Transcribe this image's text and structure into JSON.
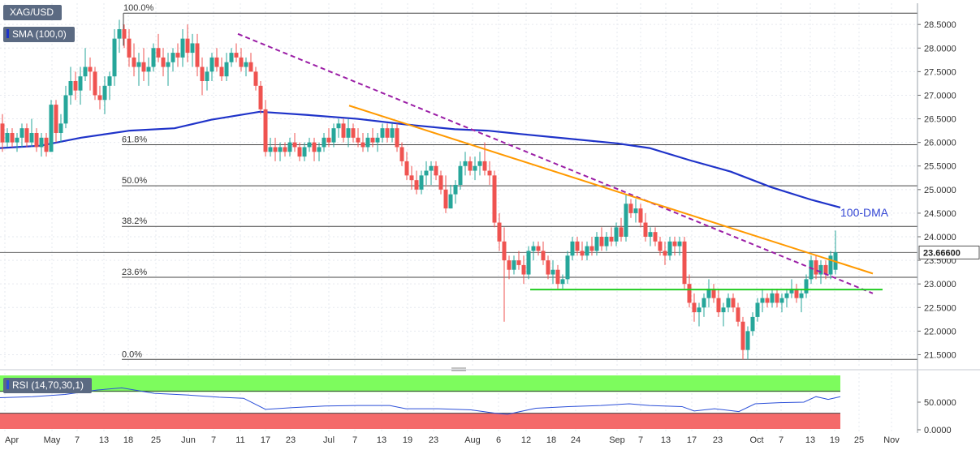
{
  "header": {
    "symbol": "XAG/USD",
    "indicator": "SMA (100,0)",
    "rsi_label": "RSI (14,70,30,1)"
  },
  "annotations": {
    "dma_label": "100-DMA"
  },
  "colors": {
    "up": "#26a69a",
    "down": "#ef5350",
    "sma": "#1f33c9",
    "trend_dashed": "#9b1ea6",
    "trend_orange": "#ff9900",
    "support": "#22cc22",
    "rsi_line": "#2b4fd8",
    "rsi_over": "#7dfc5d",
    "rsi_under": "#f46a6a"
  },
  "chart_data": {
    "type": "candlestick",
    "title": "",
    "y_ticks": [
      "28.5000",
      "28.0000",
      "27.5000",
      "27.0000",
      "26.5000",
      "26.0000",
      "25.5000",
      "25.0000",
      "24.5000",
      "24.0000",
      "23.5000",
      "23.0000",
      "22.5000",
      "22.0000",
      "21.5000"
    ],
    "ylim": [
      21.25,
      28.95
    ],
    "x_ticks": [
      "Apr",
      "May",
      "7",
      "13",
      "18",
      "25",
      "Jun",
      "7",
      "11",
      "17",
      "23",
      "Jul",
      "7",
      "13",
      "19",
      "23",
      "Aug",
      "6",
      "12",
      "18",
      "24",
      "Sep",
      "7",
      "13",
      "17",
      "23",
      "Oct",
      "7",
      "13",
      "19",
      "25",
      "Nov"
    ],
    "last_price": "23.66600",
    "last_value": 23.666,
    "fibonacci": [
      {
        "label": "100.0%",
        "value": 28.74
      },
      {
        "label": "61.8%",
        "value": 25.95
      },
      {
        "label": "50.0%",
        "value": 25.08
      },
      {
        "label": "38.2%",
        "value": 24.22
      },
      {
        "label": "23.6%",
        "value": 23.14
      },
      {
        "label": "0.0%",
        "value": 21.4
      }
    ],
    "sma_100": [
      [
        0,
        25.88
      ],
      [
        50,
        25.93
      ],
      [
        100,
        26.1
      ],
      [
        160,
        26.25
      ],
      [
        215,
        26.3
      ],
      [
        260,
        26.48
      ],
      [
        320,
        26.65
      ],
      [
        380,
        26.58
      ],
      [
        440,
        26.5
      ],
      [
        500,
        26.38
      ],
      [
        560,
        26.28
      ],
      [
        600,
        26.25
      ],
      [
        640,
        26.18
      ],
      [
        700,
        26.08
      ],
      [
        760,
        25.98
      ],
      [
        800,
        25.88
      ],
      [
        850,
        25.62
      ],
      [
        900,
        25.38
      ],
      [
        950,
        25.05
      ],
      [
        1000,
        24.78
      ],
      [
        1035,
        24.62
      ]
    ],
    "trendlines": [
      {
        "name": "dashed",
        "from": [
          293,
          28.3
        ],
        "to": [
          1075,
          22.8
        ]
      },
      {
        "name": "orange",
        "from": [
          430,
          26.78
        ],
        "to": [
          1075,
          23.22
        ]
      },
      {
        "name": "support",
        "from": [
          653,
          22.88
        ],
        "to": [
          1087,
          22.88
        ]
      }
    ],
    "candles": [
      [
        3,
        26.4,
        26.6,
        25.8,
        26.0
      ],
      [
        9,
        26.0,
        26.3,
        25.9,
        26.2
      ],
      [
        15,
        26.2,
        26.3,
        25.9,
        26.0
      ],
      [
        21,
        26.0,
        26.2,
        25.8,
        26.1
      ],
      [
        27,
        26.1,
        26.4,
        25.9,
        26.3
      ],
      [
        33,
        26.3,
        26.4,
        25.9,
        26.0
      ],
      [
        39,
        26.0,
        26.5,
        25.9,
        26.2
      ],
      [
        45,
        26.2,
        26.3,
        25.8,
        25.9
      ],
      [
        51,
        25.9,
        26.2,
        25.7,
        26.1
      ],
      [
        57,
        26.1,
        26.2,
        25.7,
        25.8
      ],
      [
        63,
        25.8,
        26.9,
        25.8,
        26.8
      ],
      [
        69,
        26.8,
        26.9,
        26.0,
        26.2
      ],
      [
        75,
        26.2,
        26.6,
        26.0,
        26.4
      ],
      [
        81,
        26.4,
        27.2,
        26.3,
        27.0
      ],
      [
        87,
        27.0,
        27.6,
        26.8,
        27.3
      ],
      [
        93,
        27.3,
        27.5,
        26.9,
        27.1
      ],
      [
        99,
        27.1,
        27.6,
        26.8,
        27.4
      ],
      [
        105,
        27.4,
        28.0,
        27.3,
        27.6
      ],
      [
        111,
        27.6,
        27.8,
        27.1,
        27.5
      ],
      [
        117,
        27.5,
        27.6,
        26.9,
        27.0
      ],
      [
        123,
        27.0,
        27.2,
        26.7,
        26.9
      ],
      [
        129,
        26.9,
        27.4,
        26.6,
        27.2
      ],
      [
        135,
        27.2,
        27.5,
        26.9,
        27.4
      ],
      [
        141,
        27.4,
        28.4,
        27.2,
        28.2
      ],
      [
        147,
        28.2,
        28.6,
        27.9,
        28.4
      ],
      [
        153,
        28.4,
        28.5,
        28.0,
        28.2
      ],
      [
        159,
        28.2,
        28.4,
        27.6,
        27.8
      ],
      [
        165,
        27.8,
        28.1,
        27.4,
        27.6
      ],
      [
        171,
        27.6,
        27.9,
        27.2,
        27.7
      ],
      [
        177,
        27.7,
        28.0,
        27.3,
        27.5
      ],
      [
        183,
        27.5,
        27.8,
        27.2,
        27.6
      ],
      [
        189,
        27.6,
        28.1,
        27.5,
        28.0
      ],
      [
        195,
        28.0,
        28.3,
        27.7,
        27.8
      ],
      [
        201,
        27.8,
        28.0,
        27.4,
        27.6
      ],
      [
        207,
        27.6,
        27.9,
        27.2,
        27.7
      ],
      [
        213,
        27.7,
        28.0,
        27.5,
        27.9
      ],
      [
        219,
        27.9,
        28.1,
        27.6,
        27.8
      ],
      [
        225,
        27.8,
        28.4,
        27.6,
        28.2
      ],
      [
        231,
        28.2,
        28.5,
        27.7,
        27.9
      ],
      [
        237,
        27.9,
        28.3,
        27.6,
        28.1
      ],
      [
        243,
        28.1,
        28.3,
        27.4,
        27.6
      ],
      [
        249,
        27.6,
        27.8,
        27.0,
        27.3
      ],
      [
        255,
        27.3,
        27.6,
        27.1,
        27.5
      ],
      [
        261,
        27.5,
        27.9,
        27.3,
        27.8
      ],
      [
        267,
        27.8,
        28.0,
        27.5,
        27.6
      ],
      [
        273,
        27.6,
        27.8,
        27.3,
        27.4
      ],
      [
        279,
        27.4,
        27.9,
        27.3,
        27.7
      ],
      [
        285,
        27.7,
        28.0,
        27.6,
        27.9
      ],
      [
        291,
        27.9,
        28.1,
        27.7,
        27.8
      ],
      [
        297,
        27.8,
        28.0,
        27.5,
        27.6
      ],
      [
        303,
        27.6,
        27.8,
        27.4,
        27.7
      ],
      [
        309,
        27.7,
        27.9,
        27.5,
        27.5
      ],
      [
        315,
        27.5,
        27.6,
        27.1,
        27.2
      ],
      [
        321,
        27.2,
        27.3,
        26.6,
        26.7
      ],
      [
        327,
        26.7,
        26.9,
        25.7,
        25.8
      ],
      [
        333,
        25.8,
        26.1,
        25.7,
        25.9
      ],
      [
        339,
        25.9,
        26.1,
        25.6,
        25.8
      ],
      [
        345,
        25.8,
        26.0,
        25.6,
        25.9
      ],
      [
        351,
        25.9,
        26.0,
        25.7,
        25.8
      ],
      [
        357,
        25.8,
        26.1,
        25.7,
        26.0
      ],
      [
        363,
        26.0,
        26.2,
        25.8,
        25.9
      ],
      [
        369,
        25.9,
        26.0,
        25.6,
        25.7
      ],
      [
        375,
        25.7,
        26.0,
        25.6,
        25.9
      ],
      [
        381,
        25.9,
        26.1,
        25.8,
        26.0
      ],
      [
        387,
        26.0,
        26.1,
        25.6,
        25.8
      ],
      [
        393,
        25.8,
        26.0,
        25.6,
        25.9
      ],
      [
        399,
        25.9,
        26.2,
        25.8,
        26.1
      ],
      [
        405,
        26.1,
        26.3,
        25.9,
        26.0
      ],
      [
        411,
        26.0,
        26.4,
        25.9,
        26.3
      ],
      [
        417,
        26.3,
        26.5,
        26.1,
        26.4
      ],
      [
        423,
        26.4,
        26.5,
        26.0,
        26.1
      ],
      [
        429,
        26.1,
        26.5,
        25.9,
        26.3
      ],
      [
        435,
        26.3,
        26.4,
        26.0,
        26.1
      ],
      [
        441,
        26.1,
        26.3,
        25.9,
        26.0
      ],
      [
        447,
        26.0,
        26.2,
        25.8,
        25.9
      ],
      [
        453,
        25.9,
        26.2,
        25.8,
        26.1
      ],
      [
        459,
        26.1,
        26.3,
        25.9,
        26.0
      ],
      [
        465,
        26.0,
        26.2,
        25.8,
        26.1
      ],
      [
        471,
        26.1,
        26.4,
        26.0,
        26.3
      ],
      [
        477,
        26.3,
        26.4,
        26.0,
        26.1
      ],
      [
        483,
        26.1,
        26.4,
        26.0,
        26.3
      ],
      [
        489,
        26.3,
        26.4,
        25.8,
        25.9
      ],
      [
        495,
        25.9,
        26.0,
        25.5,
        25.6
      ],
      [
        501,
        25.6,
        25.8,
        25.2,
        25.3
      ],
      [
        507,
        25.3,
        25.5,
        25.0,
        25.2
      ],
      [
        513,
        25.2,
        25.4,
        24.9,
        25.0
      ],
      [
        519,
        25.0,
        25.4,
        24.9,
        25.3
      ],
      [
        525,
        25.3,
        25.6,
        25.1,
        25.4
      ],
      [
        531,
        25.4,
        25.6,
        25.1,
        25.5
      ],
      [
        537,
        25.5,
        25.6,
        25.2,
        25.3
      ],
      [
        543,
        25.3,
        25.4,
        24.9,
        25.0
      ],
      [
        549,
        25.0,
        25.3,
        24.5,
        24.6
      ],
      [
        555,
        24.6,
        25.1,
        24.6,
        24.9
      ],
      [
        561,
        24.9,
        25.2,
        24.7,
        25.1
      ],
      [
        567,
        25.1,
        25.6,
        25.0,
        25.5
      ],
      [
        573,
        25.5,
        25.8,
        25.3,
        25.6
      ],
      [
        579,
        25.6,
        25.7,
        25.3,
        25.4
      ],
      [
        585,
        25.4,
        25.7,
        25.2,
        25.5
      ],
      [
        591,
        25.5,
        25.8,
        25.3,
        25.6
      ],
      [
        597,
        25.6,
        26.0,
        25.3,
        25.4
      ],
      [
        603,
        25.4,
        25.6,
        25.1,
        25.3
      ],
      [
        609,
        25.3,
        25.4,
        24.2,
        24.3
      ],
      [
        615,
        24.3,
        24.5,
        23.7,
        23.9
      ],
      [
        621,
        23.9,
        24.2,
        22.2,
        23.5
      ],
      [
        627,
        23.5,
        23.6,
        23.1,
        23.3
      ],
      [
        633,
        23.3,
        23.6,
        23.2,
        23.5
      ],
      [
        639,
        23.5,
        23.7,
        23.3,
        23.4
      ],
      [
        645,
        23.4,
        23.6,
        23.0,
        23.2
      ],
      [
        651,
        23.2,
        23.8,
        23.1,
        23.7
      ],
      [
        657,
        23.7,
        23.9,
        23.5,
        23.8
      ],
      [
        663,
        23.8,
        23.9,
        23.6,
        23.7
      ],
      [
        669,
        23.7,
        23.9,
        23.4,
        23.5
      ],
      [
        675,
        23.5,
        23.6,
        23.1,
        23.2
      ],
      [
        681,
        23.2,
        23.5,
        23.0,
        23.3
      ],
      [
        687,
        23.3,
        23.4,
        22.9,
        23.0
      ],
      [
        693,
        23.0,
        23.2,
        22.9,
        23.1
      ],
      [
        699,
        23.1,
        23.7,
        23.0,
        23.6
      ],
      [
        705,
        23.6,
        24.0,
        23.5,
        23.9
      ],
      [
        711,
        23.9,
        24.0,
        23.6,
        23.7
      ],
      [
        717,
        23.7,
        23.9,
        23.5,
        23.6
      ],
      [
        723,
        23.6,
        23.9,
        23.5,
        23.8
      ],
      [
        729,
        23.8,
        24.0,
        23.6,
        23.7
      ],
      [
        735,
        23.7,
        24.1,
        23.6,
        24.0
      ],
      [
        741,
        24.0,
        24.2,
        23.7,
        23.8
      ],
      [
        747,
        23.8,
        24.1,
        23.7,
        24.0
      ],
      [
        753,
        24.0,
        24.2,
        23.8,
        23.9
      ],
      [
        759,
        23.9,
        24.3,
        23.8,
        24.2
      ],
      [
        765,
        24.2,
        24.4,
        23.9,
        24.0
      ],
      [
        771,
        24.0,
        24.9,
        23.9,
        24.7
      ],
      [
        777,
        24.7,
        24.8,
        24.4,
        24.5
      ],
      [
        783,
        24.5,
        24.8,
        24.3,
        24.6
      ],
      [
        789,
        24.6,
        24.7,
        24.2,
        24.3
      ],
      [
        795,
        24.3,
        24.5,
        23.9,
        24.0
      ],
      [
        801,
        24.0,
        24.2,
        23.8,
        24.1
      ],
      [
        807,
        24.1,
        24.2,
        23.8,
        23.9
      ],
      [
        813,
        23.9,
        24.0,
        23.6,
        23.7
      ],
      [
        819,
        23.7,
        23.9,
        23.4,
        23.6
      ],
      [
        825,
        23.6,
        24.0,
        23.5,
        23.9
      ],
      [
        831,
        23.9,
        24.0,
        23.6,
        23.8
      ],
      [
        837,
        23.8,
        24.0,
        23.6,
        23.9
      ],
      [
        843,
        23.9,
        24.0,
        22.9,
        23.0
      ],
      [
        849,
        23.0,
        23.2,
        22.5,
        22.6
      ],
      [
        855,
        22.6,
        22.8,
        22.2,
        22.4
      ],
      [
        861,
        22.4,
        22.6,
        22.1,
        22.5
      ],
      [
        867,
        22.5,
        22.8,
        22.3,
        22.7
      ],
      [
        873,
        22.7,
        23.1,
        22.5,
        22.9
      ],
      [
        879,
        22.9,
        23.0,
        22.6,
        22.7
      ],
      [
        885,
        22.7,
        22.9,
        22.3,
        22.4
      ],
      [
        891,
        22.4,
        22.6,
        22.1,
        22.5
      ],
      [
        897,
        22.5,
        22.8,
        22.4,
        22.7
      ],
      [
        903,
        22.7,
        22.8,
        22.4,
        22.5
      ],
      [
        909,
        22.5,
        22.6,
        22.1,
        22.2
      ],
      [
        915,
        22.2,
        22.3,
        21.4,
        21.6
      ],
      [
        921,
        21.6,
        22.1,
        21.4,
        22.0
      ],
      [
        927,
        22.0,
        22.4,
        21.9,
        22.3
      ],
      [
        933,
        22.3,
        22.7,
        22.2,
        22.6
      ],
      [
        939,
        22.6,
        22.9,
        22.4,
        22.7
      ],
      [
        945,
        22.7,
        22.8,
        22.5,
        22.6
      ],
      [
        951,
        22.6,
        22.9,
        22.5,
        22.8
      ],
      [
        957,
        22.8,
        22.9,
        22.5,
        22.6
      ],
      [
        963,
        22.6,
        22.8,
        22.4,
        22.7
      ],
      [
        969,
        22.7,
        22.9,
        22.5,
        22.8
      ],
      [
        975,
        22.8,
        23.1,
        22.7,
        22.9
      ],
      [
        981,
        22.9,
        23.0,
        22.6,
        22.7
      ],
      [
        987,
        22.7,
        22.9,
        22.4,
        22.8
      ],
      [
        993,
        22.8,
        23.2,
        22.7,
        23.1
      ],
      [
        999,
        23.1,
        23.6,
        23.0,
        23.5
      ],
      [
        1005,
        23.5,
        23.6,
        23.1,
        23.2
      ],
      [
        1011,
        23.2,
        23.5,
        23.0,
        23.4
      ],
      [
        1017,
        23.4,
        23.5,
        23.1,
        23.2
      ],
      [
        1023,
        23.2,
        23.7,
        23.1,
        23.6
      ],
      [
        1029,
        23.3,
        24.13,
        23.2,
        23.67
      ]
    ],
    "rsi": {
      "ticks": [
        "50.0000",
        "0.0000"
      ],
      "ylim": [
        0,
        100
      ],
      "overbought": 70,
      "oversold": 30,
      "values": [
        [
          0,
          58
        ],
        [
          40,
          60
        ],
        [
          80,
          64
        ],
        [
          120,
          72
        ],
        [
          150,
          76
        ],
        [
          190,
          66
        ],
        [
          230,
          63
        ],
        [
          270,
          59
        ],
        [
          300,
          57
        ],
        [
          327,
          37
        ],
        [
          360,
          40
        ],
        [
          400,
          43
        ],
        [
          440,
          44
        ],
        [
          480,
          44
        ],
        [
          500,
          38
        ],
        [
          540,
          38
        ],
        [
          580,
          36
        ],
        [
          610,
          30
        ],
        [
          625,
          28
        ],
        [
          660,
          39
        ],
        [
          700,
          42
        ],
        [
          740,
          44
        ],
        [
          775,
          47
        ],
        [
          800,
          44
        ],
        [
          840,
          42
        ],
        [
          855,
          34
        ],
        [
          880,
          38
        ],
        [
          910,
          33
        ],
        [
          930,
          47
        ],
        [
          960,
          49
        ],
        [
          990,
          50
        ],
        [
          1005,
          60
        ],
        [
          1020,
          55
        ],
        [
          1035,
          60
        ]
      ]
    }
  }
}
